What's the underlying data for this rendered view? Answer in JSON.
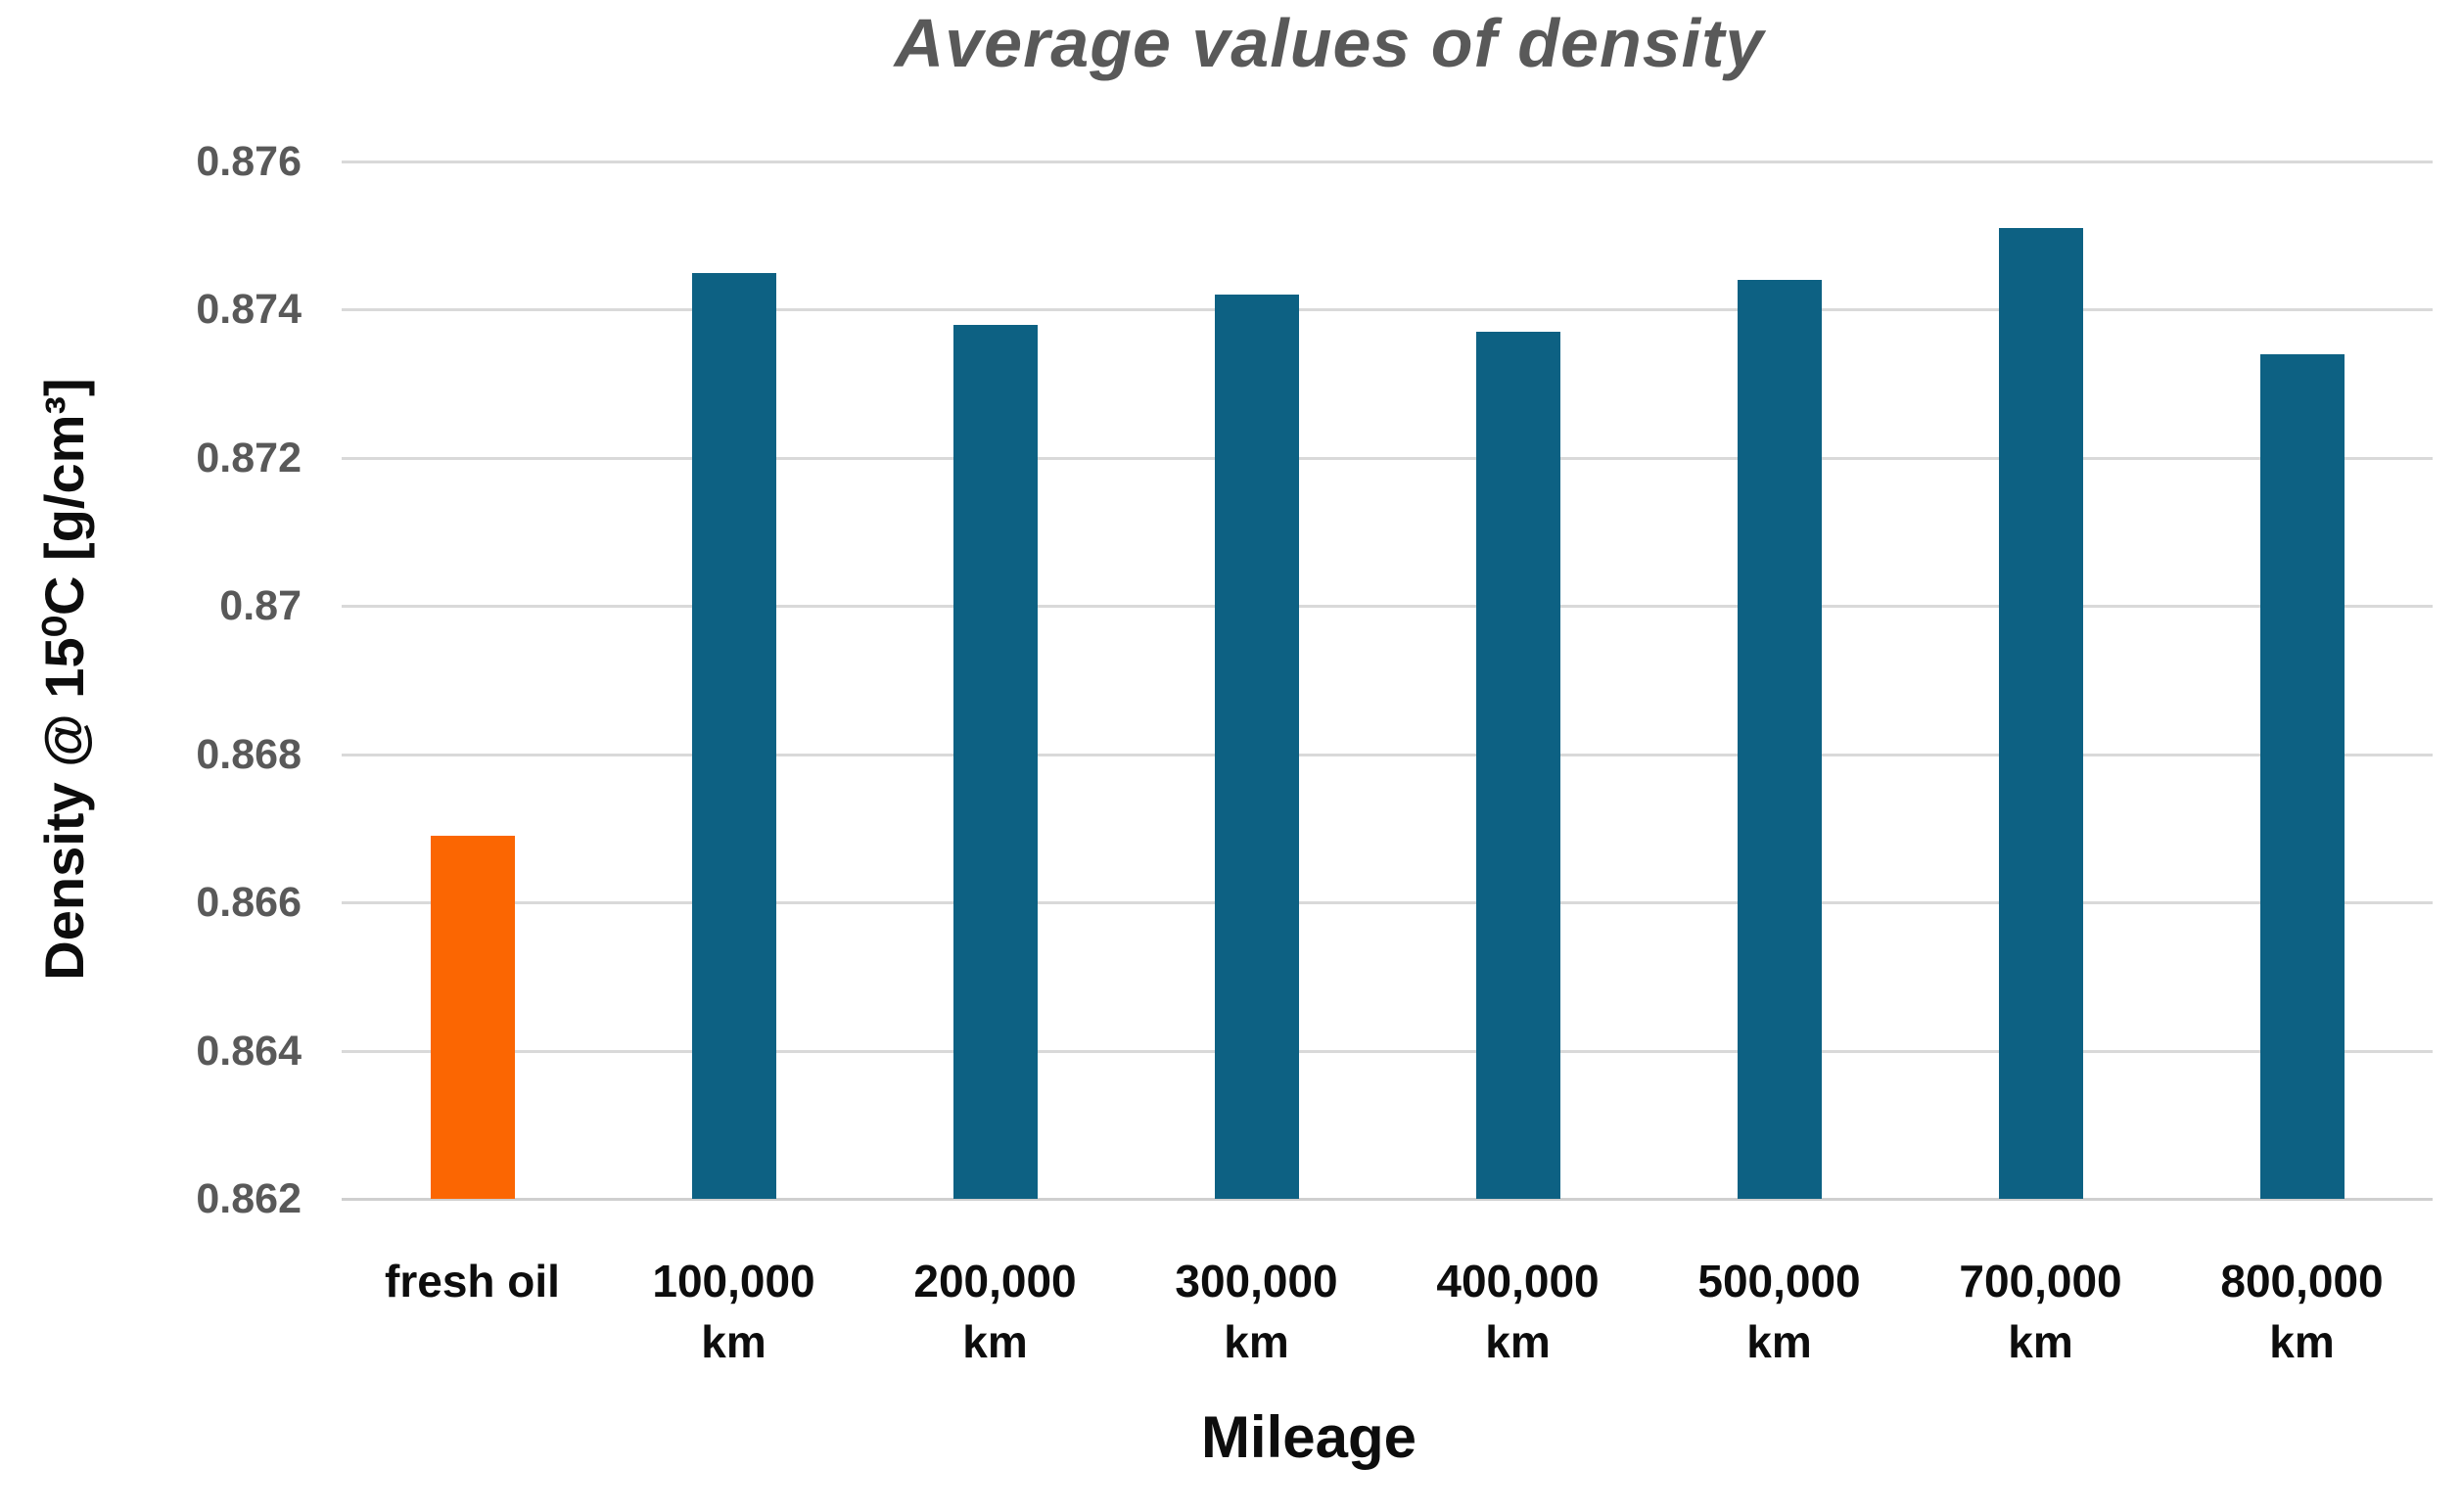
{
  "chart_data": {
    "type": "bar",
    "title": "Average values of density",
    "xlabel": "Mileage",
    "ylabel": "Density @ 15⁰C [g/cm³]",
    "categories": [
      "fresh oil",
      "100,000 km",
      "200,000 km",
      "300,000 km",
      "400,000 km",
      "500,000 km",
      "700,000 km",
      "800,000 km"
    ],
    "category_label_lines": [
      [
        "fresh oil"
      ],
      [
        "100,000",
        "km"
      ],
      [
        "200,000",
        "km"
      ],
      [
        "300,000",
        "km"
      ],
      [
        "400,000",
        "km"
      ],
      [
        "500,000",
        "km"
      ],
      [
        "700,000",
        "km"
      ],
      [
        "800,000",
        "km"
      ]
    ],
    "values": [
      0.8669,
      0.8745,
      0.8738,
      0.8742,
      0.8737,
      0.8744,
      0.8751,
      0.8734
    ],
    "bar_colors": [
      "#fb6602",
      "#0d6183",
      "#0d6183",
      "#0d6183",
      "#0d6183",
      "#0d6183",
      "#0d6183",
      "#0d6183"
    ],
    "ylim": [
      0.862,
      0.876
    ],
    "y_ticks": [
      "0.876",
      "0.874",
      "0.872",
      "0.87",
      "0.868",
      "0.866",
      "0.864",
      "0.862"
    ],
    "grid": true,
    "legend_position": "none"
  },
  "colors": {
    "background": "#ffffff",
    "title_text": "#595959",
    "tick_text": "#595959",
    "axis_text": "#0d0d0d",
    "gridline": "#d9d9d9",
    "axis_line": "#cfcfcf",
    "bar_orange": "#fb6602",
    "bar_teal": "#0d6183"
  }
}
